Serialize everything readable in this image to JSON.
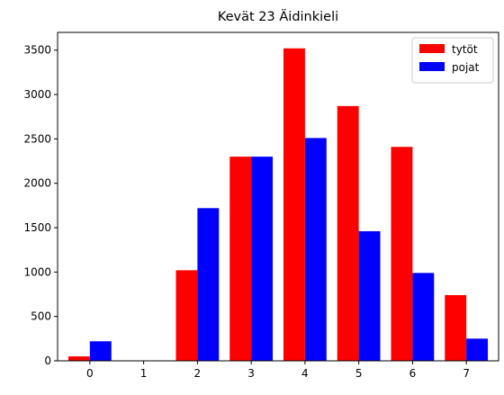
{
  "chart_data": {
    "type": "bar",
    "title": "Kevät 23 Äidinkieli",
    "xlabel": "",
    "ylabel": "",
    "categories": [
      "0",
      "1",
      "2",
      "3",
      "4",
      "5",
      "6",
      "7"
    ],
    "series": [
      {
        "name": "tytöt",
        "color": "#ff0000",
        "values": [
          50,
          0,
          1020,
          2300,
          3520,
          2870,
          2410,
          740
        ]
      },
      {
        "name": "pojat",
        "color": "#0000ff",
        "values": [
          220,
          0,
          1720,
          2300,
          2510,
          1460,
          990,
          250
        ]
      }
    ],
    "ylim": [
      0,
      3700
    ],
    "yticks": [
      0,
      500,
      1000,
      1500,
      2000,
      2500,
      3000,
      3500
    ],
    "grid": false,
    "legend_position": "top-right"
  }
}
